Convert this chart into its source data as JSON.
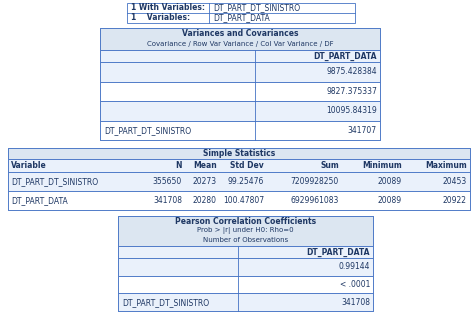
{
  "bg_color": "#ffffff",
  "header_bg": "#dce6f1",
  "cell_bg_light": "#eaf1fb",
  "border_color": "#4472c4",
  "text_color": "#1f3864",
  "with_variables_label": "1 With Variables:",
  "with_variables_value": "DT_PART_DT_SINISTRO",
  "variables_label": "1    Variables:",
  "variables_value": "DT_PART_DATA",
  "var_cov_title": "Variances and Covariances",
  "var_cov_subtitle": "Covariance / Row Var Variance / Col Var Variance / DF",
  "var_cov_col_header": "DT_PART_DATA",
  "var_cov_row_label": "DT_PART_DT_SINISTRO",
  "var_cov_values": [
    "9875.428384",
    "9827.375337",
    "10095.84319",
    "341707"
  ],
  "simple_stats_title": "Simple Statistics",
  "simple_stats_headers": [
    "Variable",
    "N",
    "Mean",
    "Std Dev",
    "Sum",
    "Minimum",
    "Maximum"
  ],
  "simple_stats_rows": [
    [
      "DT_PART_DT_SINISTRO",
      "355650",
      "20273",
      "99.25476",
      "7209928250",
      "20089",
      "20453"
    ],
    [
      "DT_PART_DATA",
      "341708",
      "20280",
      "100.47807",
      "6929961083",
      "20089",
      "20922"
    ]
  ],
  "pearson_title": "Pearson Correlation Coefficients",
  "pearson_subtitle1": "Prob > |r| under H0: Rho=0",
  "pearson_subtitle2": "Number of Observations",
  "pearson_col_header": "DT_PART_DATA",
  "pearson_row_label": "DT_PART_DT_SINISTRO",
  "pearson_values": [
    "0.99144",
    "< .0001",
    "341708"
  ]
}
